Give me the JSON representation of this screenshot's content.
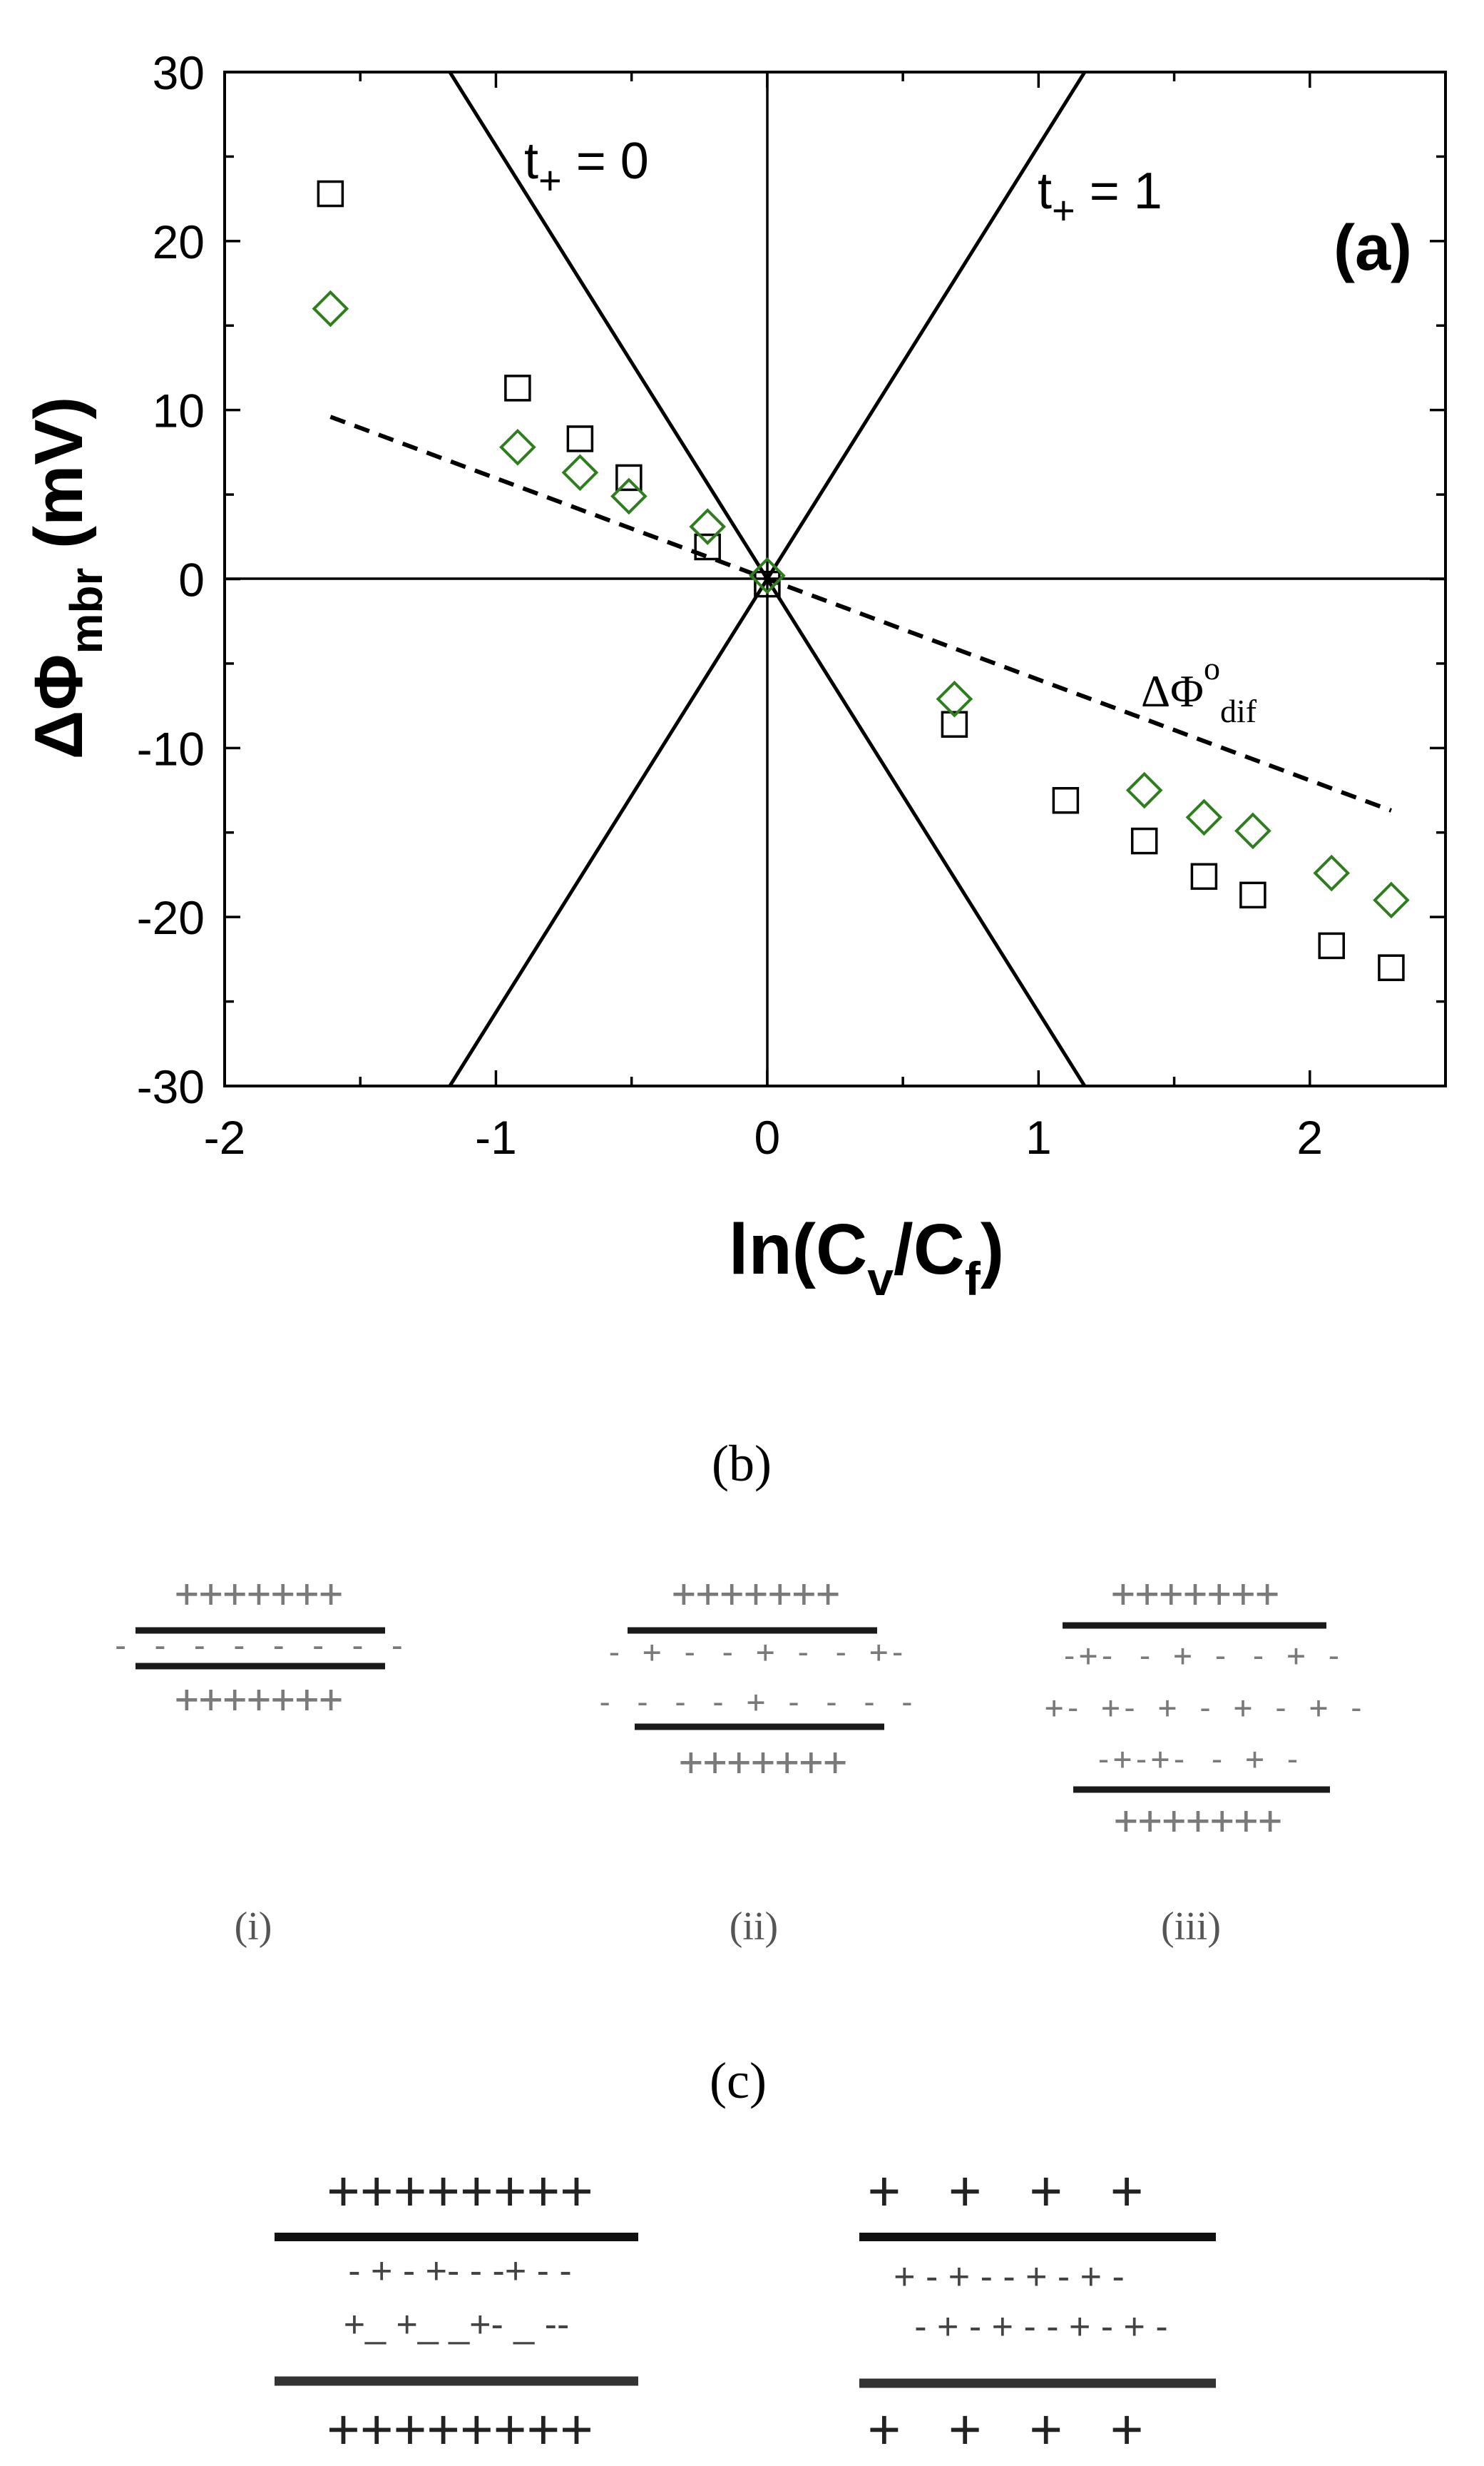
{
  "chart_data": {
    "type": "scatter",
    "panel_label": "(a)",
    "xlabel_parts": [
      "ln(C",
      "v",
      "/C",
      "f",
      ")"
    ],
    "ylabel_parts": [
      "ΔΦ",
      "mbr",
      " (mV)"
    ],
    "xlim": [
      -2,
      2.5
    ],
    "ylim": [
      -30,
      30
    ],
    "x_ticks": [
      -2,
      -1,
      0,
      1,
      2
    ],
    "x_tick_labels": [
      "-2",
      "-1",
      "0",
      "1",
      "2"
    ],
    "y_ticks": [
      -30,
      -20,
      -10,
      0,
      10,
      20,
      30
    ],
    "y_tick_labels": [
      "-30",
      "-20",
      "-10",
      "0",
      "10",
      "20",
      "30"
    ],
    "grid": false,
    "reference_lines": [
      {
        "label_parts": [
          "t",
          "+",
          " = 0"
        ],
        "x": [
          -1.17,
          1.17
        ],
        "y": [
          30,
          -30
        ]
      },
      {
        "label_parts": [
          "t",
          "+",
          " = 1"
        ],
        "x": [
          -1.17,
          1.17
        ],
        "y": [
          -30,
          30
        ]
      }
    ],
    "dashed_line": {
      "label_parts": [
        "ΔΦ",
        "o",
        "dif"
      ],
      "x": [
        -1.61,
        2.3
      ],
      "y": [
        9.6,
        -13.7
      ]
    },
    "series": [
      {
        "marker": "square",
        "color": "#000000",
        "x": [
          -1.61,
          -0.92,
          -0.69,
          -0.51,
          -0.22,
          0,
          0.69,
          1.1,
          1.39,
          1.61,
          1.79,
          2.08,
          2.3
        ],
        "y": [
          22.8,
          11.3,
          8.3,
          6.0,
          1.9,
          -0.3,
          -8.6,
          -13.1,
          -15.5,
          -17.6,
          -18.7,
          -21.7,
          -23.0
        ]
      },
      {
        "marker": "diamond",
        "color": "#2e7d1e",
        "x": [
          -1.61,
          -0.92,
          -0.69,
          -0.51,
          -0.22,
          0,
          0.69,
          1.39,
          1.61,
          1.79,
          2.08,
          2.3
        ],
        "y": [
          16.0,
          7.8,
          6.3,
          4.9,
          3.1,
          0.2,
          -7.1,
          -12.5,
          -14.1,
          -14.9,
          -17.4,
          -19.0
        ]
      }
    ]
  },
  "panel_b": {
    "label": "(b)",
    "items": [
      {
        "caption": "(i)",
        "rows": [
          "+++++++",
          "- - - - - - - -",
          "+++++++"
        ]
      },
      {
        "caption": "(ii)",
        "rows": [
          "+++++++",
          "- + - - + - - +-",
          "- - - - + - - -  -",
          "+++++++"
        ]
      },
      {
        "caption": "(iii)",
        "rows": [
          "+++++++",
          "-+- - + - - + -",
          "+- +- + - + - + -",
          "-+-+- - + -",
          "+++++++"
        ]
      }
    ]
  },
  "panel_c": {
    "label": "(c)",
    "items": [
      {
        "rows": [
          "++++++++",
          "-  +  - +- - -+ - -",
          "+_ +_ _+- _  --",
          "++++++++"
        ]
      },
      {
        "rows": [
          "+   +   +   +",
          "+ - + - - + - + -",
          "- + - + - - + - + -",
          "+   +   +   +"
        ]
      }
    ]
  }
}
